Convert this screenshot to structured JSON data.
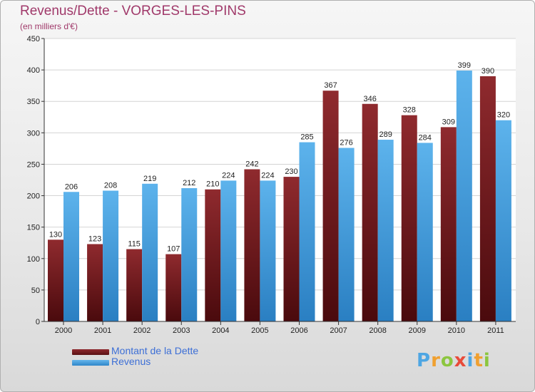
{
  "chart_data": {
    "type": "bar",
    "title": "Revenus/Dette - VORGES-LES-PINS",
    "subtitle": "(en milliers d'€)",
    "categories": [
      "2000",
      "2001",
      "2002",
      "2003",
      "2004",
      "2005",
      "2006",
      "2007",
      "2008",
      "2009",
      "2010",
      "2011"
    ],
    "series": [
      {
        "name": "Montant de la Dette",
        "color": "#7a1e22",
        "values": [
          130,
          123,
          115,
          107,
          210,
          242,
          230,
          367,
          346,
          328,
          309,
          390
        ]
      },
      {
        "name": "Revenus",
        "color": "#4ea6e3",
        "values": [
          206,
          208,
          219,
          212,
          224,
          224,
          285,
          276,
          289,
          284,
          399,
          320
        ]
      }
    ],
    "ylim": [
      0,
      450
    ],
    "yticks": [
      0,
      50,
      100,
      150,
      200,
      250,
      300,
      350,
      400,
      450
    ],
    "grid": true,
    "legend_position": "bottom-left"
  },
  "logo": {
    "letters": [
      {
        "ch": "P",
        "color": "#4ea6e3"
      },
      {
        "ch": "r",
        "color": "#f0a030"
      },
      {
        "ch": "o",
        "color": "#8cc63f"
      },
      {
        "ch": "x",
        "color": "#e84b3a"
      },
      {
        "ch": "i",
        "color": "#4ea6e3"
      },
      {
        "ch": "t",
        "color": "#f0a030"
      },
      {
        "ch": "i",
        "color": "#8cc63f"
      }
    ]
  }
}
